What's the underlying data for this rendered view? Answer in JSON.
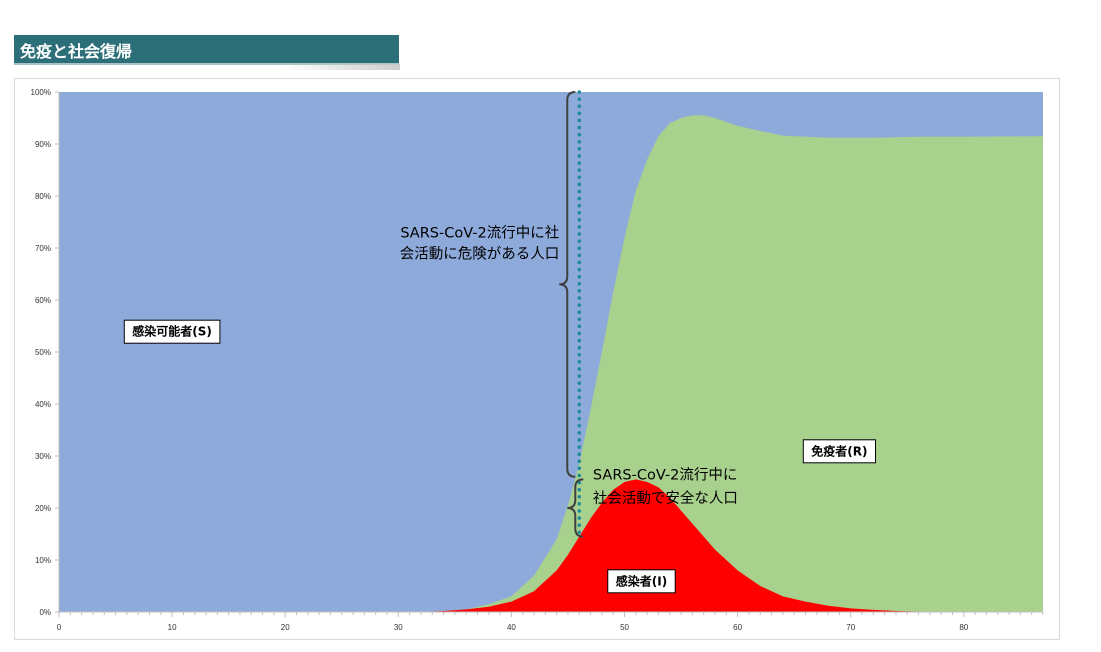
{
  "title": "免疫と社会復帰",
  "chart_data": {
    "type": "area",
    "stacked_percent": true,
    "xlim": [
      0,
      87
    ],
    "ylim": [
      0,
      100
    ],
    "x_ticks": [
      "0",
      "10",
      "20",
      "30",
      "40",
      "50",
      "60",
      "70",
      "80"
    ],
    "y_ticks": [
      "0%",
      "10%",
      "20%",
      "30%",
      "40%",
      "50%",
      "60%",
      "70%",
      "80%",
      "90%",
      "100%"
    ],
    "series": [
      {
        "name": "感染者(I)",
        "color": "#ff0000",
        "x": [
          0,
          32,
          34,
          36,
          38,
          40,
          42,
          44,
          45,
          46,
          47,
          48,
          49,
          50,
          51,
          52,
          53,
          54,
          55,
          56,
          57,
          58,
          60,
          62,
          64,
          66,
          68,
          70,
          72,
          74,
          76,
          80,
          87
        ],
        "values": [
          0,
          0,
          0.2,
          0.5,
          1,
          2,
          4,
          8,
          11,
          14.5,
          18,
          21,
          23.5,
          25,
          25.5,
          25,
          24,
          22,
          19.5,
          17,
          14.5,
          12,
          8,
          5,
          3,
          2,
          1.2,
          0.7,
          0.4,
          0.2,
          0.1,
          0,
          0
        ]
      },
      {
        "name": "免疫者(R)",
        "color": "#a9d18e",
        "x": [
          0,
          32,
          34,
          36,
          38,
          40,
          42,
          44,
          45,
          46,
          47,
          48,
          49,
          50,
          51,
          52,
          53,
          54,
          55,
          56,
          57,
          58,
          60,
          62,
          64,
          66,
          68,
          70,
          72,
          74,
          76,
          80,
          87
        ],
        "values": [
          0,
          0,
          0,
          0,
          0.5,
          1,
          3,
          6,
          9.5,
          14,
          21,
          29,
          38,
          47,
          55.5,
          62,
          67.5,
          72,
          75.5,
          78.5,
          81,
          83,
          85.5,
          87.5,
          88.6,
          89.4,
          90,
          90.5,
          90.8,
          91.1,
          91.3,
          91.4,
          91.5
        ]
      },
      {
        "name": "感染可能者(S)",
        "color": "#8eaadb",
        "fill_to_top": true
      }
    ],
    "labels": [
      {
        "name": "感染可能者(S)",
        "x": 10,
        "y": 54
      },
      {
        "name": "免疫者(R)",
        "x": 69,
        "y": 31
      },
      {
        "name": "感染者(I)",
        "x": 51.5,
        "y": 6
      }
    ],
    "vline": {
      "x": 46,
      "y_from": 15,
      "y_to": 100,
      "color": "#1f8a9a",
      "style": "dotted"
    },
    "annotations": [
      {
        "lines": [
          "SARS-CoV-2流行中に社",
          "会活動に危険がある人口"
        ],
        "brace_y": [
          26,
          100
        ]
      },
      {
        "lines": [
          "SARS-CoV-2流行中に",
          "社会活動で安全な人口"
        ],
        "brace_y": [
          14.5,
          25.5
        ]
      }
    ]
  }
}
